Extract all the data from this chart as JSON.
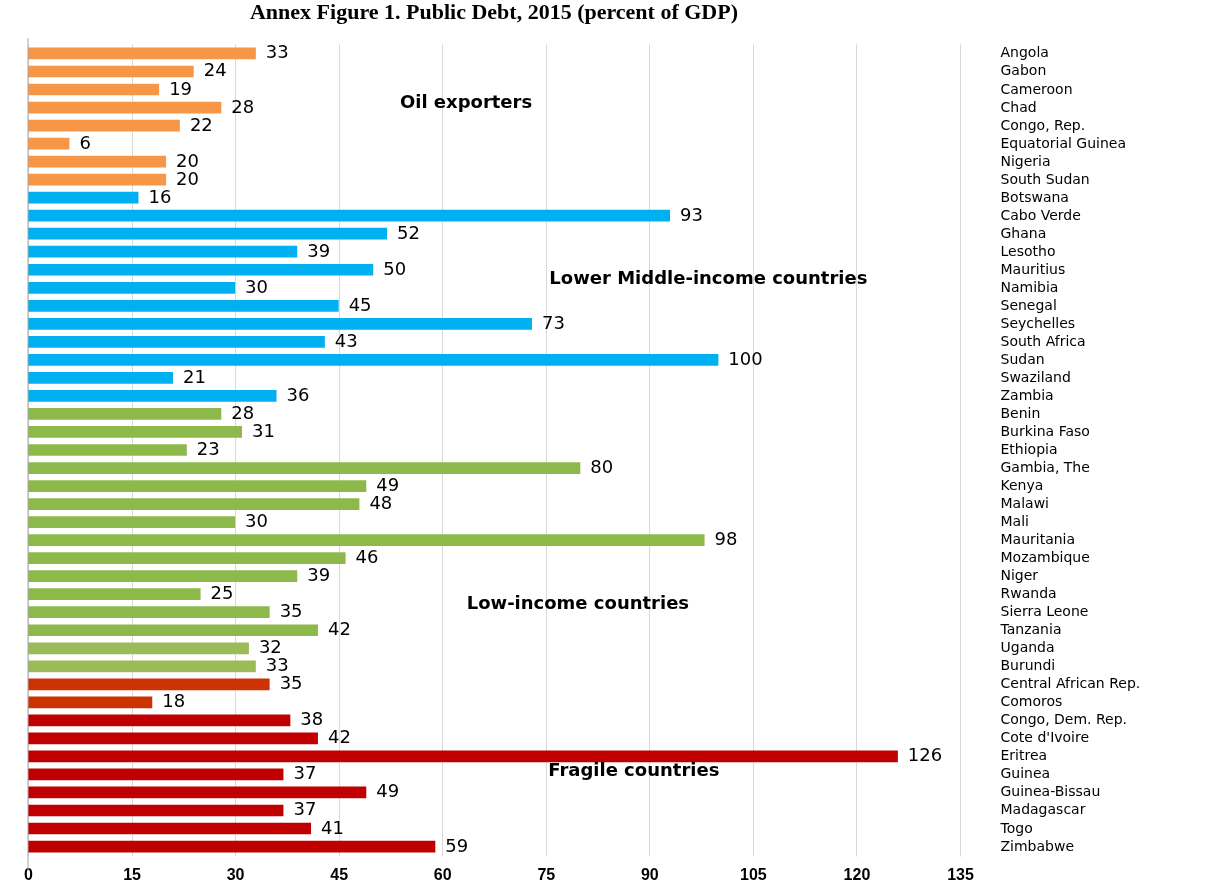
{
  "chart_data": {
    "type": "bar",
    "orientation": "horizontal",
    "title": "Annex Figure 1. Public Debt, 2015 (percent of GDP)",
    "categories": [
      "Angola",
      "Gabon",
      "Cameroon",
      "Chad",
      "Congo, Rep.",
      "Equatorial Guinea",
      "Nigeria",
      "South Sudan",
      "Botswana",
      "Cabo Verde",
      "Ghana",
      "Lesotho",
      "Mauritius",
      "Namibia",
      "Senegal",
      "Seychelles",
      "South Africa",
      "Sudan",
      "Swaziland",
      "Zambia",
      "Benin",
      "Burkina Faso",
      "Ethiopia",
      "Gambia, The",
      "Kenya",
      "Malawi",
      "Mali",
      "Mauritania",
      "Mozambique",
      "Niger",
      "Rwanda",
      "Sierra Leone",
      "Tanzania",
      "Uganda",
      "Burundi",
      "Central African Rep.",
      "Comoros",
      "Congo, Dem. Rep.",
      "Cote d'Ivoire",
      "Eritrea",
      "Guinea",
      "Guinea-Bissau",
      "Madagascar",
      "Togo",
      "Zimbabwe"
    ],
    "values": [
      33,
      24,
      19,
      28,
      22,
      6,
      20,
      20,
      16,
      93,
      52,
      39,
      50,
      30,
      45,
      73,
      43,
      100,
      21,
      36,
      28,
      31,
      23,
      80,
      49,
      48,
      30,
      98,
      46,
      39,
      25,
      35,
      42,
      32,
      33,
      35,
      18,
      38,
      42,
      126,
      37,
      49,
      37,
      41,
      59
    ],
    "colors": [
      "#f79646",
      "#f79646",
      "#f79646",
      "#f79646",
      "#f79646",
      "#f79646",
      "#f79646",
      "#f79646",
      "#00b0f0",
      "#00b0f0",
      "#00b0f0",
      "#00b0f0",
      "#00b0f0",
      "#00b0f0",
      "#00b0f0",
      "#00b0f0",
      "#00b0f0",
      "#00b0f0",
      "#00b0f0",
      "#00b0f0",
      "#8db84a",
      "#8db84a",
      "#8db84a",
      "#8db84a",
      "#8db84a",
      "#8db84a",
      "#8db84a",
      "#8db84a",
      "#8db84a",
      "#8db84a",
      "#8db84a",
      "#8db84a",
      "#8db84a",
      "#9bbb59",
      "#9bbb59",
      "#cc3300",
      "#cc3300",
      "#c00000",
      "#c00000",
      "#c00000",
      "#c00000",
      "#c00000",
      "#c00000",
      "#c00000",
      "#c00000"
    ],
    "xlim": [
      0,
      135
    ],
    "xticks": [
      0,
      15,
      30,
      45,
      60,
      75,
      90,
      105,
      120,
      135
    ],
    "data_labels": true,
    "grid": "x",
    "legend": false,
    "annotations": [
      "Oil exporters",
      "Lower Middle-income countries",
      "Low-income countries",
      "Fragile countries"
    ]
  }
}
